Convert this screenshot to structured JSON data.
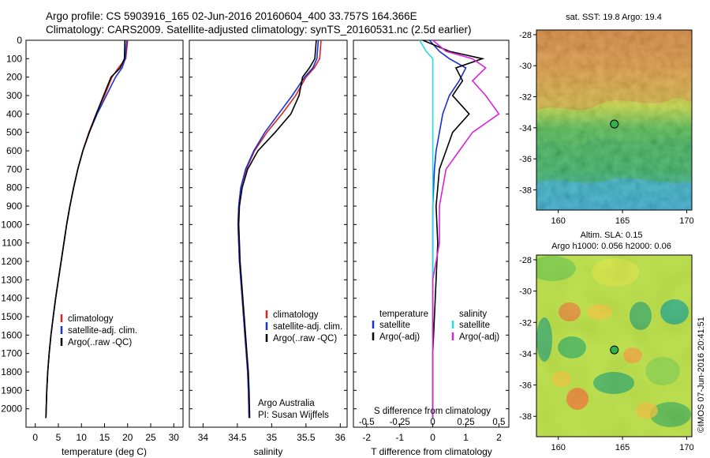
{
  "header": {
    "line1": "Argo profile: CS 5903916_165 02-Jun-2016 20160604_400 33.757S 164.366E",
    "line2": "Climatology: CARS2009. Satellite-adjusted climatology: synTS_20160531.nc (2.5d earlier)"
  },
  "colors": {
    "climatology": "#dd2222",
    "satellite": "#1a2fd6",
    "argo": "#000000",
    "sat_salinity": "#22dddd",
    "argo_salinity": "#dd22dd"
  },
  "panel_temperature": {
    "xlabel": "temperature (deg C)",
    "legend": [
      "climatology",
      "satellite-adj. clim.",
      "Argo(..raw -QC)"
    ]
  },
  "panel_salinity": {
    "xlabel": "salinity",
    "legend": [
      "climatology",
      "satellite-adj. clim.",
      "Argo(..raw -QC)"
    ],
    "credit1": "Argo Australia",
    "credit2": "PI: Susan Wijffels"
  },
  "panel_diff": {
    "xlabel": "T difference from climatology",
    "top_label": "S difference from climatology",
    "legend_temp_title": "temperature",
    "legend_sal_title": "salinity",
    "legend_temp": [
      "satellite",
      "Argo(-adj)"
    ],
    "legend_sal": [
      "satellite",
      "Argo(-adj)"
    ]
  },
  "map_sst": {
    "title": "sat. SST: 19.8  Argo: 19.4"
  },
  "map_sla": {
    "title1": "Altim. SLA: 0.15",
    "title2": "Argo h1000: 0.056  h2000: 0.06"
  },
  "watermark": "©IMOS 07-Jun-2016 20:41:51",
  "chart_data": [
    {
      "type": "line",
      "title": "",
      "xlabel": "temperature (deg C)",
      "ylabel": "",
      "xlim": [
        -2,
        32
      ],
      "ylim": [
        2100,
        0
      ],
      "xticks": [
        0,
        5,
        10,
        15,
        20,
        25,
        30
      ],
      "yticks": [
        0,
        100,
        200,
        300,
        400,
        500,
        600,
        700,
        800,
        900,
        1000,
        1100,
        1200,
        1300,
        1400,
        1500,
        1600,
        1700,
        1800,
        1900,
        2000
      ],
      "series": [
        {
          "name": "climatology",
          "x": [
            20.0,
            19.6,
            18.0,
            16.6,
            15.0,
            13.2,
            11.6,
            10.3,
            9.2,
            8.3,
            7.5,
            6.8,
            6.2,
            5.6,
            5.0,
            4.4,
            3.9,
            3.4,
            3.0,
            2.7,
            2.5,
            2.3
          ],
          "y": [
            0,
            100,
            150,
            200,
            300,
            400,
            500,
            600,
            700,
            800,
            900,
            1000,
            1100,
            1200,
            1300,
            1400,
            1500,
            1600,
            1700,
            1800,
            1900,
            2050
          ]
        },
        {
          "name": "satellite-adj. clim.",
          "x": [
            19.8,
            19.5,
            18.8,
            17.4,
            15.4,
            13.4,
            11.7,
            10.3,
            9.2,
            8.3,
            7.5,
            6.8,
            6.2,
            5.6,
            5.0,
            4.4,
            3.9,
            3.4,
            3.0,
            2.7,
            2.5,
            2.3
          ],
          "y": [
            0,
            100,
            150,
            200,
            300,
            400,
            500,
            600,
            700,
            800,
            900,
            1000,
            1100,
            1200,
            1300,
            1400,
            1500,
            1600,
            1700,
            1800,
            1900,
            2050
          ]
        },
        {
          "name": "Argo(..raw -QC)",
          "x": [
            19.4,
            19.3,
            18.4,
            16.4,
            14.8,
            13.2,
            11.7,
            10.3,
            9.2,
            8.3,
            7.5,
            6.8,
            6.2,
            5.6,
            5.0,
            4.4,
            3.9,
            3.4,
            3.0,
            2.7,
            2.5,
            2.3
          ],
          "y": [
            0,
            100,
            150,
            200,
            300,
            400,
            500,
            600,
            700,
            800,
            900,
            1000,
            1100,
            1200,
            1300,
            1400,
            1500,
            1600,
            1700,
            1800,
            1900,
            2050
          ]
        }
      ]
    },
    {
      "type": "line",
      "title": "",
      "xlabel": "salinity",
      "ylabel": "",
      "xlim": [
        33.8,
        36.1
      ],
      "ylim": [
        2100,
        0
      ],
      "xticks": [
        34,
        34.5,
        35,
        35.5,
        36
      ],
      "series": [
        {
          "name": "climatology",
          "x": [
            35.72,
            35.7,
            35.62,
            35.5,
            35.35,
            35.15,
            34.93,
            34.75,
            34.63,
            34.55,
            34.52,
            34.51,
            34.52,
            34.53,
            34.55,
            34.57,
            34.59,
            34.61,
            34.63,
            34.65,
            34.66,
            34.67
          ],
          "y": [
            0,
            100,
            150,
            200,
            300,
            400,
            500,
            600,
            700,
            800,
            900,
            1000,
            1100,
            1200,
            1300,
            1400,
            1500,
            1600,
            1700,
            1800,
            1900,
            2050
          ]
        },
        {
          "name": "satellite-adj. clim.",
          "x": [
            35.68,
            35.66,
            35.6,
            35.48,
            35.3,
            35.1,
            34.9,
            34.74,
            34.62,
            34.55,
            34.52,
            34.51,
            34.52,
            34.53,
            34.55,
            34.57,
            34.59,
            34.61,
            34.63,
            34.65,
            34.66,
            34.67
          ],
          "y": [
            0,
            100,
            150,
            200,
            300,
            400,
            500,
            600,
            700,
            800,
            900,
            1000,
            1100,
            1200,
            1300,
            1400,
            1500,
            1600,
            1700,
            1800,
            1900,
            2050
          ]
        },
        {
          "name": "Argo(..raw -QC)",
          "x": [
            35.65,
            35.63,
            35.55,
            35.45,
            35.4,
            35.28,
            35.05,
            34.8,
            34.65,
            34.57,
            34.53,
            34.52,
            34.53,
            34.54,
            34.56,
            34.58,
            34.6,
            34.62,
            34.64,
            34.66,
            34.67,
            34.68
          ],
          "y": [
            0,
            100,
            150,
            200,
            300,
            400,
            500,
            600,
            700,
            800,
            900,
            1000,
            1100,
            1200,
            1300,
            1400,
            1500,
            1600,
            1700,
            1800,
            1900,
            2050
          ]
        }
      ]
    },
    {
      "type": "line",
      "title": "",
      "xlabel": "T difference from climatology",
      "x2label": "S difference from climatology",
      "xlim": [
        -2.4,
        2.3
      ],
      "ylim": [
        2100,
        0
      ],
      "xticks": [
        -2,
        -1,
        0,
        1,
        2
      ],
      "x2ticks": [
        -0.5,
        -0.25,
        0,
        0.25,
        0.5
      ],
      "series": [
        {
          "name": "temperature satellite",
          "x": [
            -0.1,
            0.2,
            0.5,
            1.0,
            0.8,
            0.5,
            0.3,
            0.2,
            0.1,
            0.05,
            0.0,
            0.0,
            0.0,
            0.0,
            0.0,
            0.0,
            0.0
          ],
          "y": [
            0,
            60,
            100,
            150,
            220,
            300,
            400,
            500,
            600,
            700,
            900,
            1100,
            1300,
            1500,
            1700,
            1900,
            2050
          ]
        },
        {
          "name": "temperature Argo(-adj)",
          "x": [
            -0.3,
            0.5,
            1.5,
            0.7,
            0.9,
            0.6,
            1.1,
            0.6,
            0.4,
            0.2,
            0.1,
            0.15,
            0.1,
            0.05,
            0.0,
            0.0,
            0.0
          ],
          "y": [
            0,
            60,
            100,
            150,
            220,
            300,
            400,
            500,
            600,
            700,
            900,
            1100,
            1300,
            1500,
            1700,
            1900,
            2050
          ]
        },
        {
          "name": "salinity satellite",
          "x": [
            -0.1,
            -0.05,
            0.0,
            0.0,
            0.0,
            0.0,
            0.0,
            0.0,
            0.0,
            0.0,
            0.0,
            0.0,
            0.0,
            0.0,
            0.0,
            0.0,
            0.0
          ],
          "y": [
            0,
            60,
            100,
            150,
            220,
            300,
            400,
            500,
            600,
            700,
            900,
            1100,
            1300,
            1500,
            1700,
            1900,
            2050
          ]
        },
        {
          "name": "salinity Argo(-adj)",
          "x": [
            0.0,
            0.1,
            0.3,
            0.4,
            0.3,
            0.4,
            0.5,
            0.3,
            0.2,
            0.1,
            0.05,
            0.05,
            0.0,
            0.0,
            0.0,
            0.0,
            0.0
          ],
          "y": [
            0,
            60,
            100,
            150,
            220,
            300,
            400,
            500,
            600,
            700,
            900,
            1100,
            1300,
            1500,
            1700,
            1900,
            2050
          ]
        }
      ]
    },
    {
      "type": "heatmap",
      "title": "sat. SST: 19.8  Argo: 19.4",
      "xlim": [
        158.3,
        170.4
      ],
      "ylim": [
        -39.3,
        -27.7
      ],
      "xticks": [
        160,
        165,
        170
      ],
      "yticks": [
        -28,
        -30,
        -32,
        -34,
        -36,
        -38
      ],
      "marker": {
        "lon": 164.366,
        "lat": -33.757
      }
    },
    {
      "type": "heatmap",
      "title": "Altim. SLA: 0.15",
      "xlim": [
        158.3,
        170.4
      ],
      "ylim": [
        -39.3,
        -27.7
      ],
      "xticks": [
        160,
        165,
        170
      ],
      "yticks": [
        -28,
        -30,
        -32,
        -34,
        -36,
        -38
      ],
      "marker": {
        "lon": 164.366,
        "lat": -33.757
      }
    }
  ]
}
